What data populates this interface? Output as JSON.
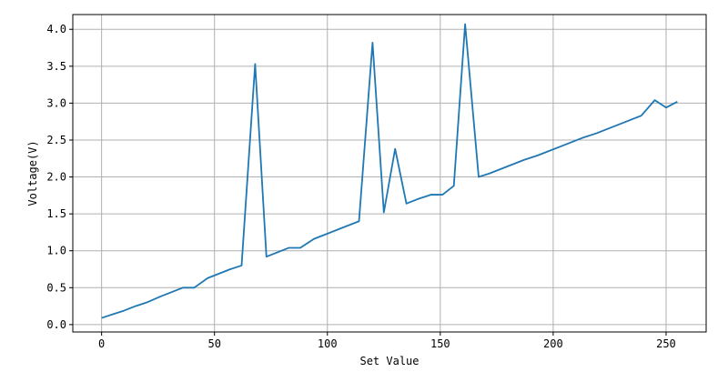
{
  "chart_data": {
    "type": "line",
    "title": "",
    "xlabel": "Set Value",
    "ylabel": "Voltage(V)",
    "xlim": [
      -12.75,
      267.75
    ],
    "ylim": [
      -0.1,
      4.2
    ],
    "grid": true,
    "x_ticks": [
      0,
      50,
      100,
      150,
      200,
      250
    ],
    "x_tick_labels": [
      "0",
      "50",
      "100",
      "150",
      "200",
      "250"
    ],
    "y_ticks": [
      0.0,
      0.5,
      1.0,
      1.5,
      2.0,
      2.5,
      3.0,
      3.5,
      4.0
    ],
    "y_tick_labels": [
      "0.0",
      "0.5",
      "1.0",
      "1.5",
      "2.0",
      "2.5",
      "3.0",
      "3.5",
      "4.0"
    ],
    "series": [
      {
        "color": "#1f77b4",
        "x": [
          0,
          5,
          10,
          15,
          20,
          26,
          31,
          36,
          41,
          47,
          52,
          57,
          62,
          68,
          73,
          78,
          83,
          88,
          94,
          99,
          104,
          109,
          114,
          120,
          125,
          130,
          135,
          140,
          146,
          151,
          156,
          161,
          167,
          172,
          177,
          182,
          187,
          193,
          198,
          203,
          208,
          213,
          219,
          224,
          229,
          234,
          239,
          245,
          250,
          255
        ],
        "y": [
          0.09,
          0.14,
          0.19,
          0.25,
          0.3,
          0.38,
          0.44,
          0.5,
          0.5,
          0.63,
          0.69,
          0.75,
          0.8,
          3.53,
          0.92,
          0.98,
          1.04,
          1.04,
          1.16,
          1.22,
          1.28,
          1.34,
          1.4,
          3.82,
          1.52,
          2.38,
          1.64,
          1.7,
          1.76,
          1.76,
          1.88,
          4.07,
          2.0,
          2.05,
          2.11,
          2.17,
          2.23,
          2.29,
          2.35,
          2.41,
          2.47,
          2.53,
          2.59,
          2.65,
          2.71,
          2.77,
          2.83,
          3.04,
          2.94,
          3.02
        ]
      }
    ]
  }
}
